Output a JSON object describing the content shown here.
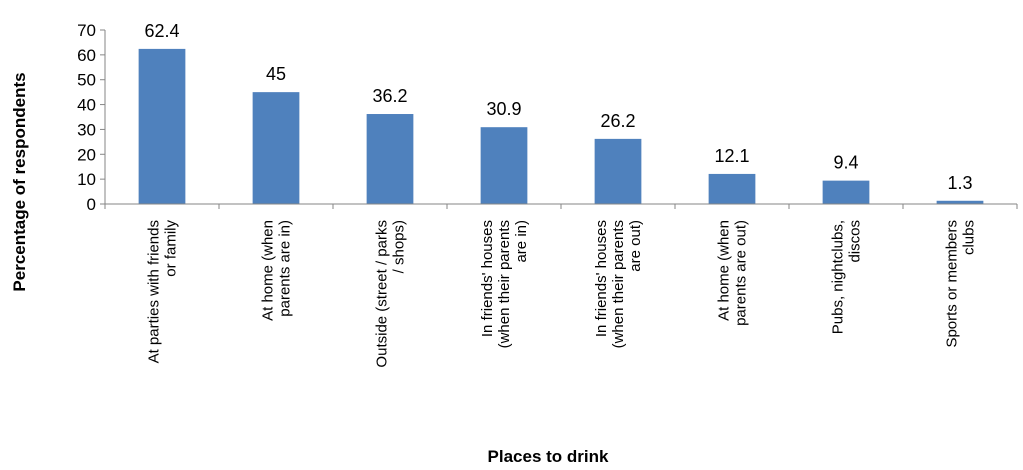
{
  "chart_data": {
    "type": "bar",
    "title": "",
    "xlabel": "Places to drink",
    "ylabel": "Percentage of respondents",
    "ylim": [
      0,
      70
    ],
    "yticks": [
      0,
      10,
      20,
      30,
      40,
      50,
      60,
      70
    ],
    "grid": false,
    "legend": "none",
    "bar_color": "#4F81BD",
    "categories": [
      [
        "At parties with friends",
        "or family"
      ],
      [
        "At home (when",
        "parents are in)"
      ],
      [
        "Outside (street / parks",
        "/ shops)"
      ],
      [
        "In friends' houses",
        "(when their parents",
        "are in)"
      ],
      [
        "In friends' houses",
        "(when their parents",
        "are out)"
      ],
      [
        "At home (when",
        "parents are out)"
      ],
      [
        "Pubs, nightclubs,",
        "discos"
      ],
      [
        "Sports or members",
        "clubs"
      ]
    ],
    "values": [
      62.4,
      45,
      36.2,
      30.9,
      26.2,
      12.1,
      9.4,
      1.3
    ],
    "value_labels": [
      "62.4",
      "45",
      "36.2",
      "30.9",
      "26.2",
      "12.1",
      "9.4",
      "1.3"
    ]
  }
}
